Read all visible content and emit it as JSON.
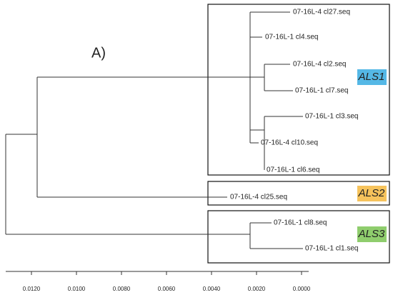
{
  "panel_label": "A)",
  "leaves": [
    "07-16L-4 cl27.seq",
    "07-16L-1 cl4.seq",
    "07-16L-4 cl2.seq",
    "07-16L-1 cl7.seq",
    "07-16L-1 cl3.seq",
    "07-16L-4 cl10.seq",
    "07-16L-1 cl6.seq",
    "07-16L-4 cl25.seq",
    "07-16L-1 cl8.seq",
    "07-16L-1 cl1.seq"
  ],
  "groups": [
    "ALS1",
    "ALS2",
    "ALS3"
  ],
  "axis": {
    "ticks": [
      "0.0120",
      "0.0100",
      "0.0080",
      "0.0060",
      "0.0040",
      "0.0020",
      "0.0000"
    ]
  }
}
